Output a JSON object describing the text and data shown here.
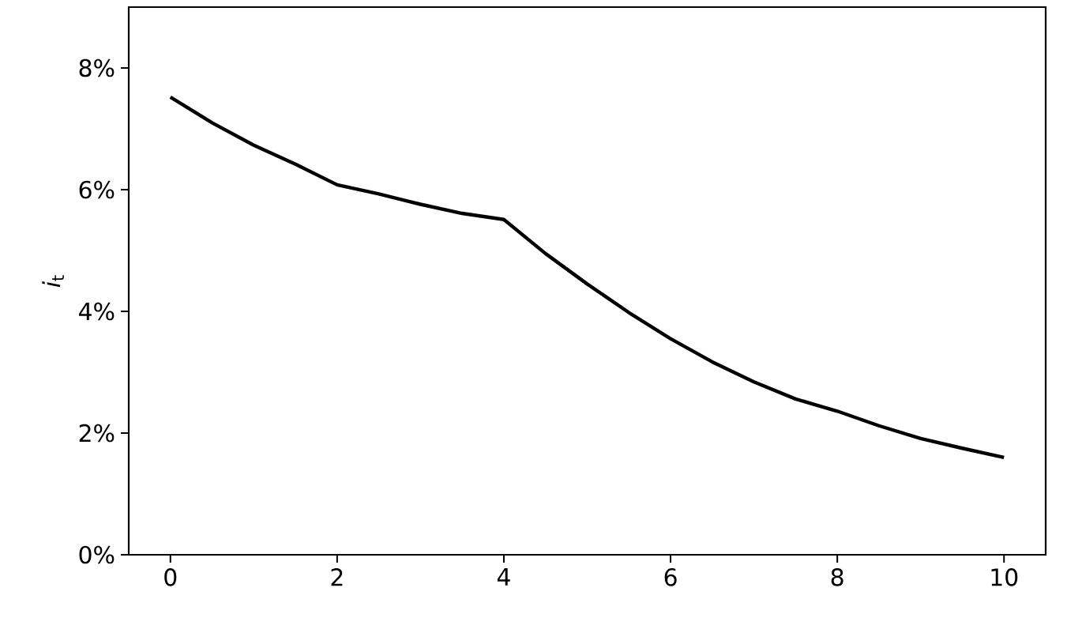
{
  "chart_data": {
    "type": "line",
    "ylabel": "*i*$_{t}$",
    "x": [
      0,
      0.5,
      1,
      1.5,
      2,
      2.5,
      3,
      3.5,
      4,
      4.5,
      5,
      5.5,
      6,
      6.5,
      7,
      7.5,
      8,
      8.5,
      9,
      9.5,
      10
    ],
    "series": [
      {
        "color": "#000000",
        "values": [
          7.52,
          7.1,
          6.73,
          6.42,
          6.08,
          5.93,
          5.76,
          5.61,
          5.51,
          4.95,
          4.45,
          3.98,
          3.55,
          3.17,
          2.84,
          2.56,
          2.36,
          2.12,
          1.91,
          1.75,
          1.6
        ]
      }
    ],
    "xlim": [
      -0.5,
      10.5
    ],
    "ylim": [
      0,
      9
    ],
    "xticks": [
      0,
      2,
      4,
      6,
      8,
      10
    ],
    "yticks": [
      {
        "value": 0,
        "label": "0%"
      },
      {
        "value": 2,
        "label": "2%"
      },
      {
        "value": 4,
        "label": "4%"
      },
      {
        "value": 6,
        "label": "6%"
      },
      {
        "value": 8,
        "label": "8%"
      }
    ],
    "grid": false,
    "marker": "none",
    "line_style": "solid"
  }
}
